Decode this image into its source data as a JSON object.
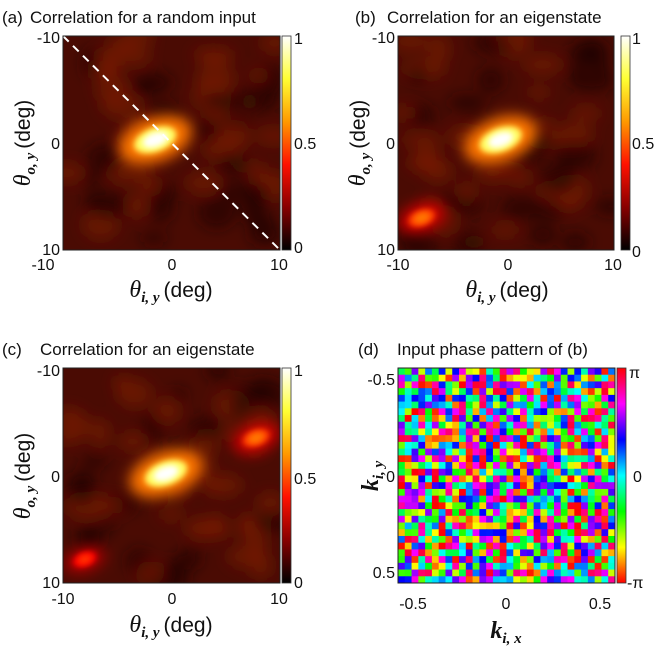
{
  "chart_data": [
    {
      "type": "heatmap",
      "panel_label": "(a)",
      "title": "Correlation for a random input",
      "xlabel_symbol": "θ",
      "xlabel_sub": "i, y",
      "xlabel_unit": "(deg)",
      "ylabel_symbol": "θ",
      "ylabel_sub": "o, y",
      "ylabel_unit": "(deg)",
      "xlim": [
        -10,
        10
      ],
      "ylim": [
        -10,
        10
      ],
      "xticks": [
        "-10",
        "0",
        "10"
      ],
      "yticks": [
        "-10",
        "0",
        "10"
      ],
      "colorbar": {
        "range": [
          0,
          1
        ],
        "ticks": [
          "1",
          "0.5",
          "0"
        ],
        "colormap": "hot"
      },
      "peaks": [
        {
          "x": -1.5,
          "y": -0.3,
          "value": 1.0
        }
      ],
      "annotations": [
        {
          "type": "dashed-line",
          "from": [
            -10,
            -10
          ],
          "to": [
            10,
            10
          ],
          "color": "#ffffff"
        }
      ]
    },
    {
      "type": "heatmap",
      "panel_label": "(b)",
      "title": "Correlation for an eigenstate",
      "xlabel_symbol": "θ",
      "xlabel_sub": "i, y",
      "xlabel_unit": "(deg)",
      "ylabel_symbol": "θ",
      "ylabel_sub": "o, y",
      "ylabel_unit": "(deg)",
      "xlim": [
        -10,
        10
      ],
      "ylim": [
        -10,
        10
      ],
      "xticks": [
        "-10",
        "0",
        "10"
      ],
      "yticks": [
        "-10",
        "0",
        "10"
      ],
      "colorbar": {
        "range": [
          0,
          1
        ],
        "ticks": [
          "1",
          "0.5",
          "0"
        ],
        "colormap": "hot"
      },
      "peaks": [
        {
          "x": -0.5,
          "y": -0.3,
          "value": 1.0
        },
        {
          "x": -7.8,
          "y": 7.0,
          "value": 0.55
        }
      ]
    },
    {
      "type": "heatmap",
      "panel_label": "(c)",
      "title": "Correlation for an eigenstate",
      "xlabel_symbol": "θ",
      "xlabel_sub": "i, y",
      "xlabel_unit": "(deg)",
      "ylabel_symbol": "θ",
      "ylabel_sub": "o, y",
      "ylabel_unit": "(deg)",
      "xlim": [
        -10,
        10
      ],
      "ylim": [
        -10,
        10
      ],
      "xticks": [
        "-10",
        "0",
        "10"
      ],
      "yticks": [
        "-10",
        "0",
        "10"
      ],
      "colorbar": {
        "range": [
          0,
          1
        ],
        "ticks": [
          "1",
          "0.5",
          "0"
        ],
        "colormap": "hot"
      },
      "peaks": [
        {
          "x": -0.5,
          "y": -0.2,
          "value": 1.0
        },
        {
          "x": 7.8,
          "y": -3.5,
          "value": 0.55
        },
        {
          "x": -8.0,
          "y": 7.8,
          "value": 0.45
        }
      ]
    },
    {
      "type": "heatmap",
      "panel_label": "(d)",
      "title": "Input phase pattern of (b)",
      "xlabel_symbol": "k",
      "xlabel_sub": "i, x",
      "ylabel_symbol": "k",
      "ylabel_sub": "i, y",
      "xlim": [
        -0.5,
        0.5
      ],
      "ylim": [
        -0.5,
        0.5
      ],
      "xticks": [
        "-0.5",
        "0",
        "0.5"
      ],
      "yticks": [
        "-0.5",
        "0",
        "0.5"
      ],
      "colorbar": {
        "range": [
          "-π",
          "π"
        ],
        "ticks": [
          "π",
          "0",
          "-π"
        ],
        "colormap": "hsv"
      },
      "grid_size": 32
    }
  ]
}
